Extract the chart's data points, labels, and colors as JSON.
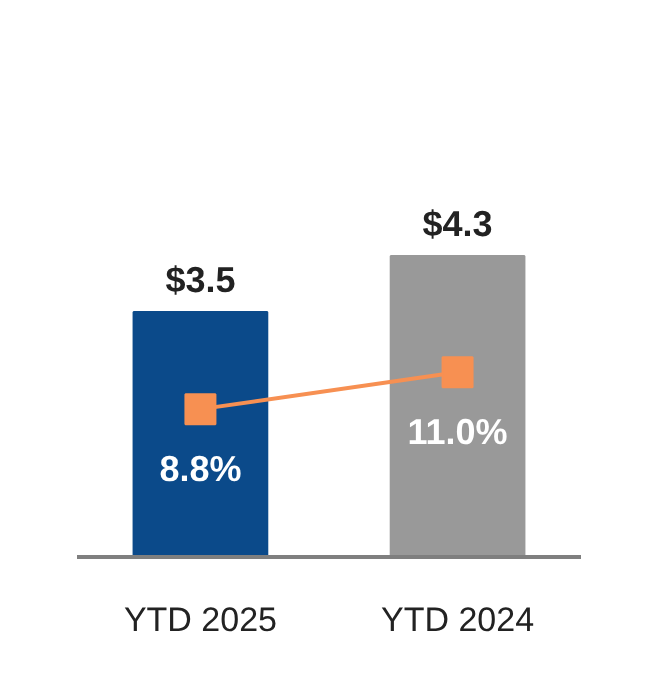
{
  "chart_data": {
    "type": "bar",
    "categories": [
      "YTD 2025",
      "YTD 2024"
    ],
    "grid": false,
    "tick_labels": "x",
    "series": [
      {
        "colors": [
          "#0b4a8a",
          "#999999"
        ],
        "values": [
          3.5,
          4.3
        ],
        "value_labels": [
          "$3.5",
          "$4.3"
        ]
      },
      {
        "type": "line",
        "axis": "y2",
        "color": "#f79052",
        "marker": "square",
        "values": [
          8.8,
          11.0
        ],
        "value_labels": [
          "8.8%",
          "11.0%"
        ]
      }
    ]
  }
}
